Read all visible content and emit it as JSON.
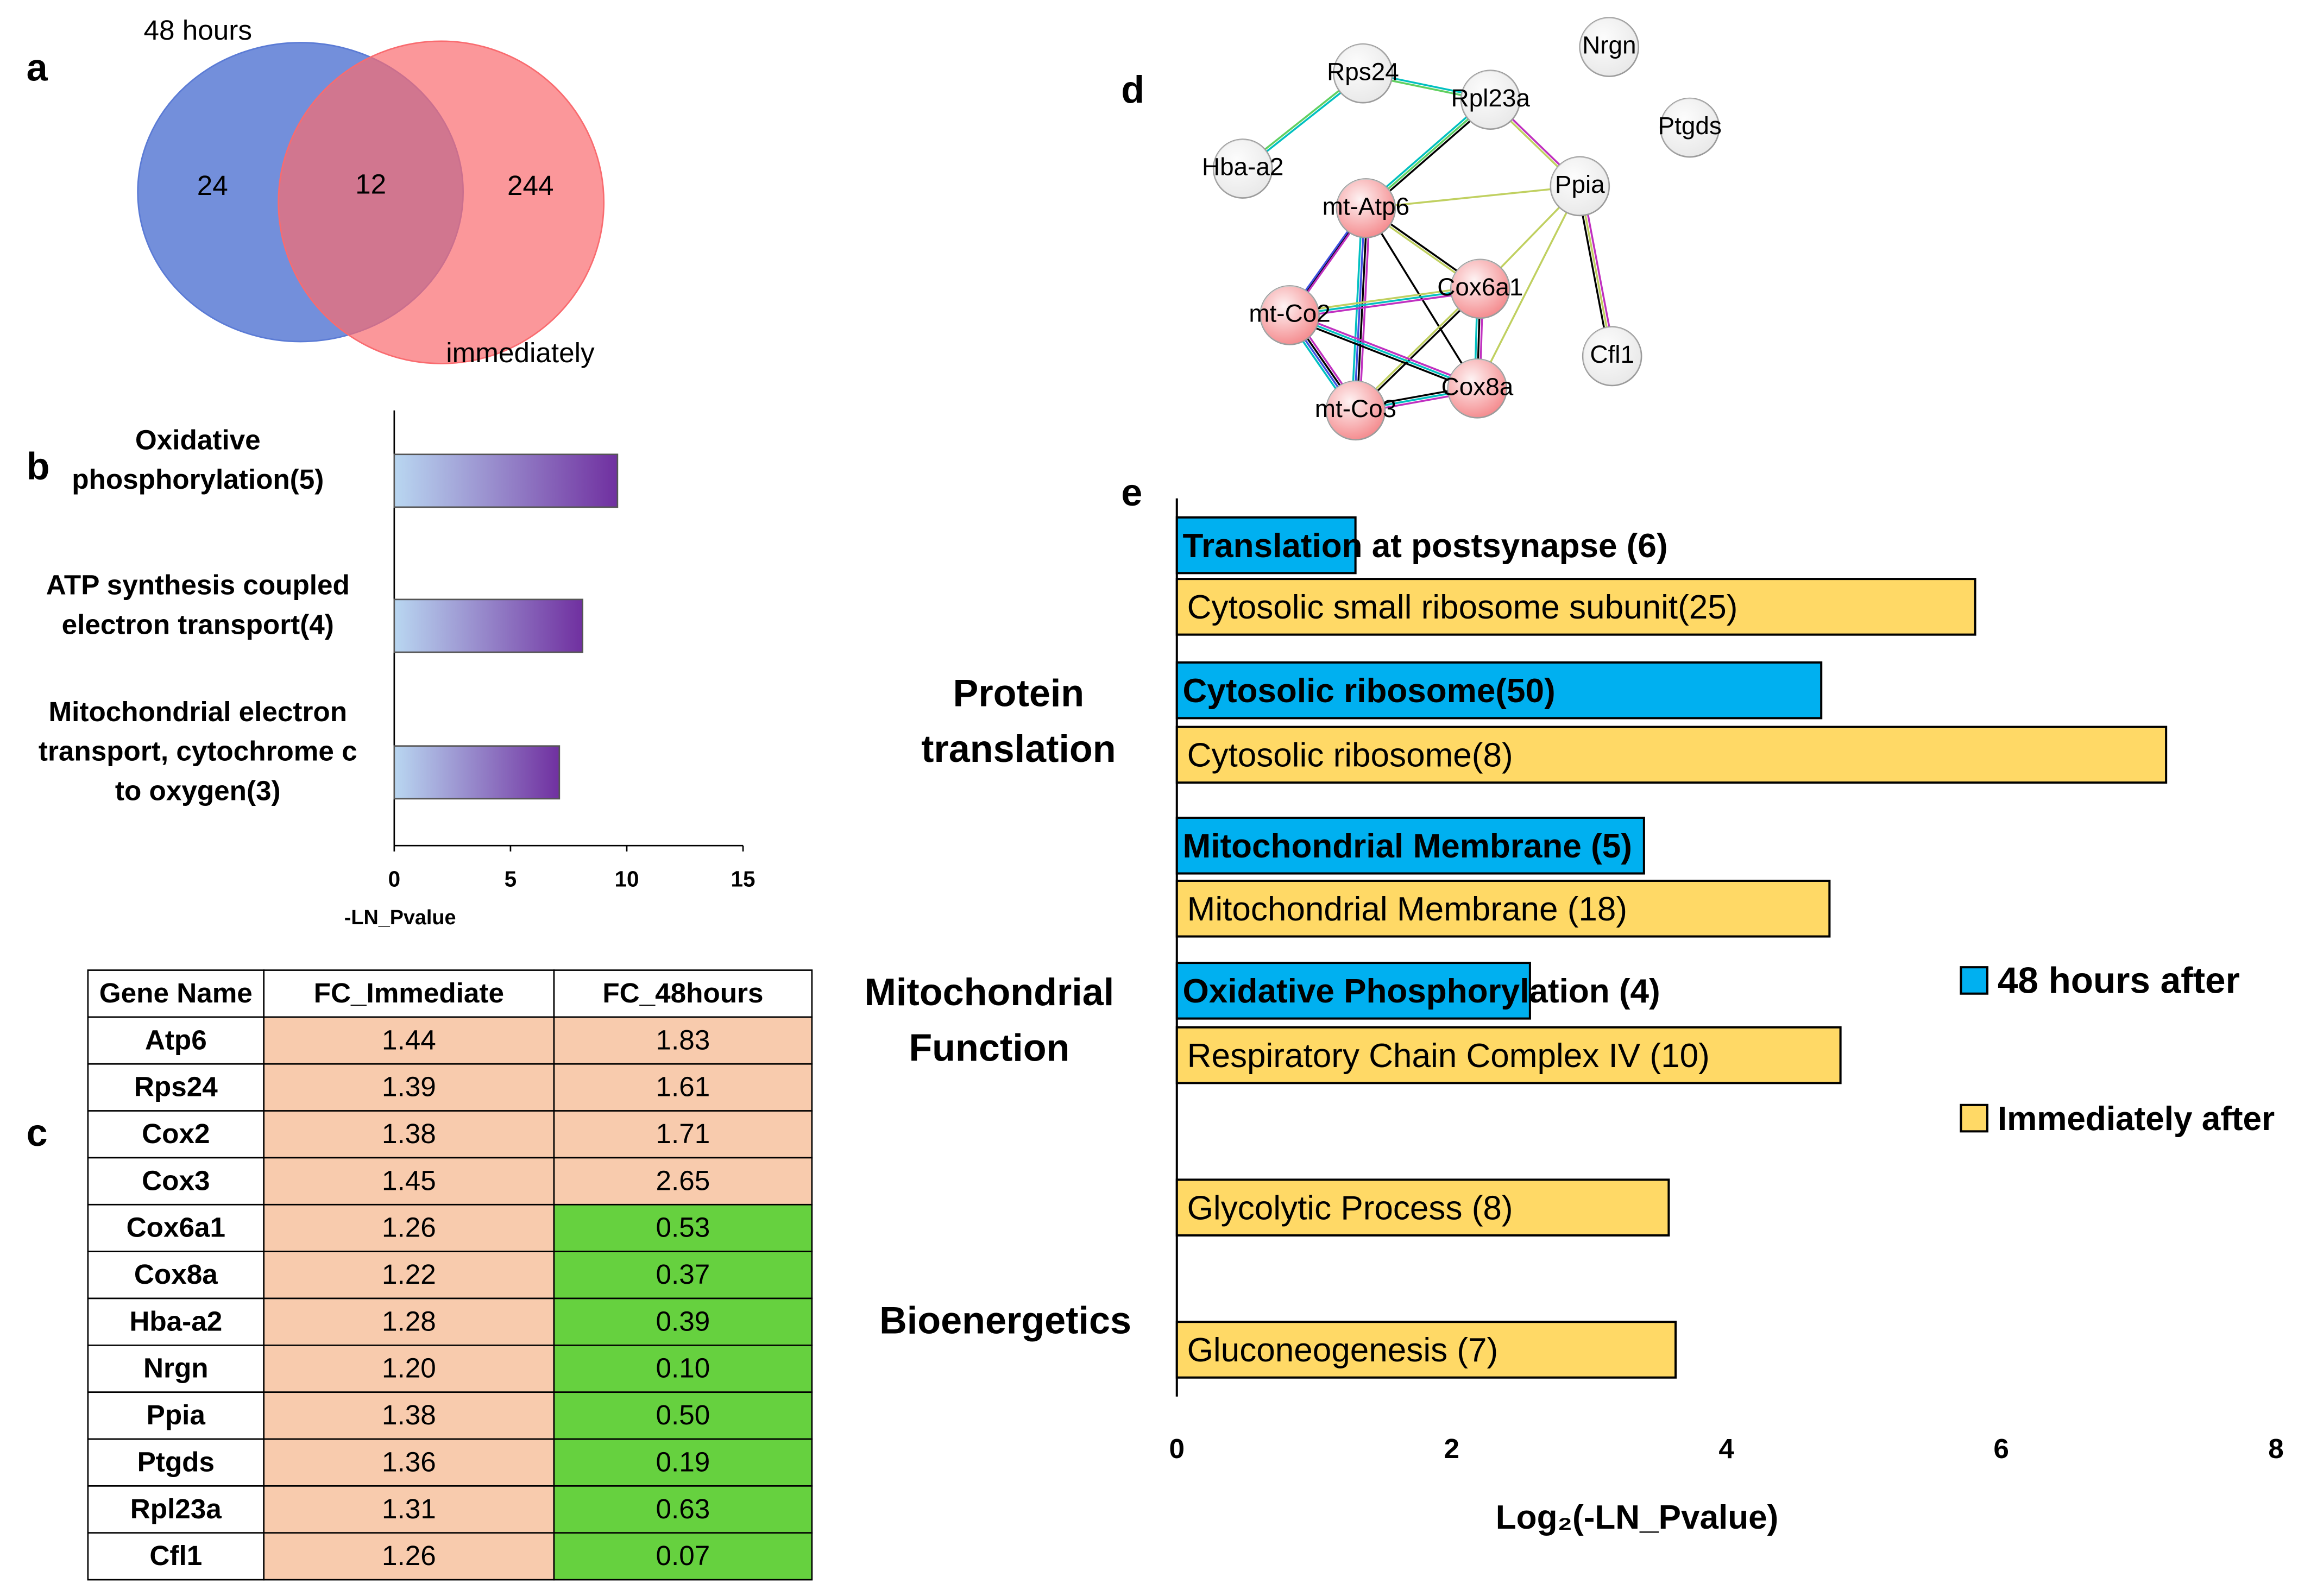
{
  "panel_labels": [
    "a",
    "b",
    "c",
    "d",
    "e"
  ],
  "chart_data": [
    {
      "type": "venn",
      "sets": [
        {
          "name": "48 hours",
          "color": "#5b7bd5"
        },
        {
          "name": "immediately",
          "color": "#f96b6f"
        }
      ],
      "values": [
        24,
        12,
        244
      ]
    },
    {
      "type": "barh",
      "categories": [
        [
          "Oxidative",
          "phosphorylation(5)"
        ],
        [
          "ATP synthesis coupled",
          "electron transport(4)"
        ],
        [
          "Mitochondrial electron",
          "transport, cytochrome c",
          "to oxygen(3)"
        ]
      ],
      "values": [
        9.6,
        8.1,
        7.1
      ],
      "colors": [
        "#b9d7f1",
        "#7030a0"
      ],
      "xlim": [
        0,
        15
      ],
      "xticks": [
        0,
        5,
        10,
        15
      ],
      "xlabel": "-LN_Pvalue"
    },
    {
      "type": "grouped-barh",
      "groups": [
        [
          "Protein",
          "translation"
        ],
        [
          "Mitochondrial",
          "Function"
        ],
        [
          "Bioenergetics"
        ]
      ],
      "series": [
        {
          "name": "48 hours after",
          "color": "#00b0f0",
          "labels": [
            "Translation at postsynapse (6)",
            "Cytosolic ribosome(50)",
            "Mitochondrial Membrane (5)",
            "Oxidative Phosphorylation (4)"
          ],
          "values": [
            1.3,
            4.69,
            3.4,
            2.57
          ]
        },
        {
          "name": "Immediately after",
          "color": "#ffd966",
          "labels": [
            "Cytosolic  small ribosome subunit(25)",
            "Cytosolic ribosome(8)",
            "Mitochondrial Membrane (18)",
            "Respiratory Chain Complex IV (10)",
            "Glycolytic Process (8)",
            "Gluconeogenesis (7)"
          ],
          "values": [
            5.81,
            7.2,
            4.75,
            4.83,
            3.58,
            3.63
          ]
        }
      ],
      "xlim": [
        0,
        8
      ],
      "xticks": [
        0,
        2,
        4,
        6,
        8
      ],
      "xlabel": "Log₂(-LN_Pvalue)"
    }
  ],
  "table": {
    "header": [
      "Gene Name",
      "FC_Immediate",
      "FC_48hours"
    ],
    "cell_colors": {
      "up": "#f8cbad",
      "down": "#66d13f"
    },
    "rows": [
      [
        "Atp6",
        "1.44",
        "1.83"
      ],
      [
        "Rps24",
        "1.39",
        "1.61"
      ],
      [
        "Cox2",
        "1.38",
        "1.71"
      ],
      [
        "Cox3",
        "1.45",
        "2.65"
      ],
      [
        "Cox6a1",
        "1.26",
        "0.53"
      ],
      [
        "Cox8a",
        "1.22",
        "0.37"
      ],
      [
        "Hba-a2",
        "1.28",
        "0.39"
      ],
      [
        "Nrgn",
        "1.20",
        "0.10"
      ],
      [
        "Ppia",
        "1.38",
        "0.50"
      ],
      [
        "Ptgds",
        "1.36",
        "0.19"
      ],
      [
        "Rpl23a",
        "1.31",
        "0.63"
      ],
      [
        "Cfl1",
        "1.26",
        "0.07"
      ]
    ]
  },
  "network": {
    "nodes": [
      {
        "label": "Rps24",
        "color": "#e8e8e8"
      },
      {
        "label": "Rpl23a",
        "color": "#e8e8e8"
      },
      {
        "label": "Nrgn",
        "color": "#e8e8e8"
      },
      {
        "label": "Ptgds",
        "color": "#e8e8e8"
      },
      {
        "label": "Hba-a2",
        "color": "#e8e8e8"
      },
      {
        "label": "Ppia",
        "color": "#e8e8e8"
      },
      {
        "label": "mt-Atp6",
        "color": "#f4878a"
      },
      {
        "label": "Cox6a1",
        "color": "#f4878a"
      },
      {
        "label": "mt-Co2",
        "color": "#f4878a"
      },
      {
        "label": "Cfl1",
        "color": "#e8e8e8"
      },
      {
        "label": "Cox8a",
        "color": "#f4878a"
      },
      {
        "label": "mt-Co3",
        "color": "#f4878a"
      }
    ]
  }
}
